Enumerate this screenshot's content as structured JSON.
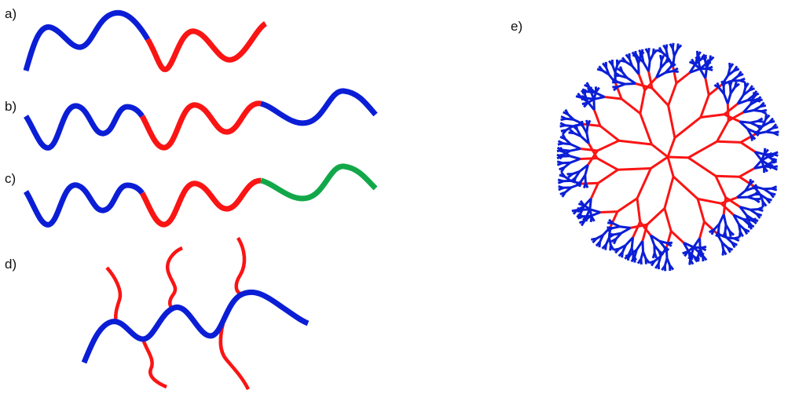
{
  "panels": {
    "a": {
      "label": "a)"
    },
    "b": {
      "label": "b)"
    },
    "c": {
      "label": "c)"
    },
    "d": {
      "label": "d)"
    },
    "e": {
      "label": "e)"
    }
  },
  "colors": {
    "block_a": "#0b1ed6",
    "block_b": "#fa1414",
    "block_c": "#12a84a"
  }
}
